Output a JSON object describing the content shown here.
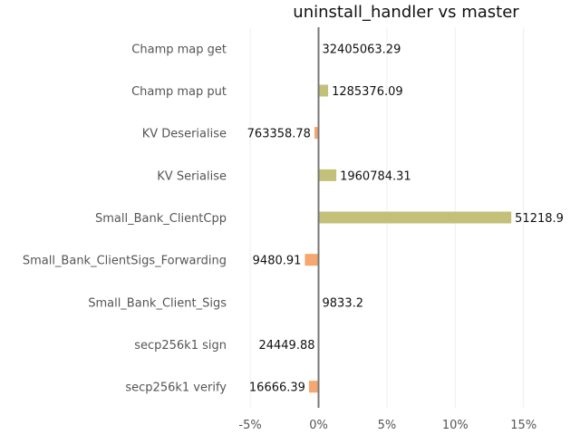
{
  "chart_data": {
    "type": "bar",
    "orientation": "horizontal",
    "title": "uninstall_handler vs master",
    "xlabel": "",
    "ylabel": "",
    "xlim": [
      -6.2,
      18.2
    ],
    "x_ticks": [
      -5,
      0,
      5,
      10,
      15
    ],
    "x_tick_labels": [
      "-5%",
      "0%",
      "5%",
      "10%",
      "15%"
    ],
    "grid": true,
    "legend": "none",
    "categories": [
      "Champ map get",
      "Champ map put",
      "KV Deserialise",
      "KV Serialise",
      "Small_Bank_ClientCpp",
      "Small_Bank_ClientSigs_Forwarding",
      "Small_Bank_Client_Sigs",
      "secp256k1 sign",
      "secp256k1 verify"
    ],
    "values": [
      0.0,
      0.7,
      -0.3,
      1.3,
      14.1,
      -1.0,
      0.0,
      0.0,
      -0.7
    ],
    "value_labels": [
      "32405063.29",
      "1285376.09",
      "763358.78",
      "1960784.31",
      "51218.9",
      "9480.91",
      "9833.2",
      "24449.88",
      "16666.39"
    ],
    "colors": {
      "positive": "#c3c07a",
      "negative": "#f4a76f"
    }
  }
}
